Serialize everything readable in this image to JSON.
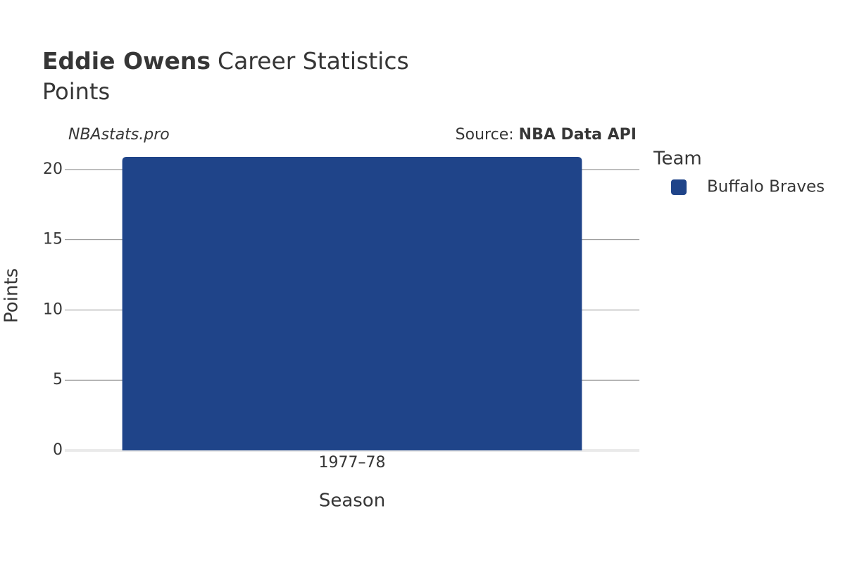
{
  "chart_data": {
    "type": "bar",
    "title": {
      "bold": "Eddie Owens",
      "rest": "Career Statistics"
    },
    "subtitle": "Points",
    "watermark": "NBAstats.pro",
    "source": {
      "label": "Source:",
      "name": "NBA Data API"
    },
    "x_label": "Season",
    "y_label": "Points",
    "legend_title": "Team",
    "categories": [
      "1977–78"
    ],
    "series": [
      {
        "name": "Buffalo Braves",
        "color": "#1f4489",
        "values": [
          20.9
        ]
      }
    ],
    "ylim": [
      0,
      22
    ],
    "yticks": [
      0,
      5,
      10,
      15,
      20
    ],
    "grid": true
  }
}
